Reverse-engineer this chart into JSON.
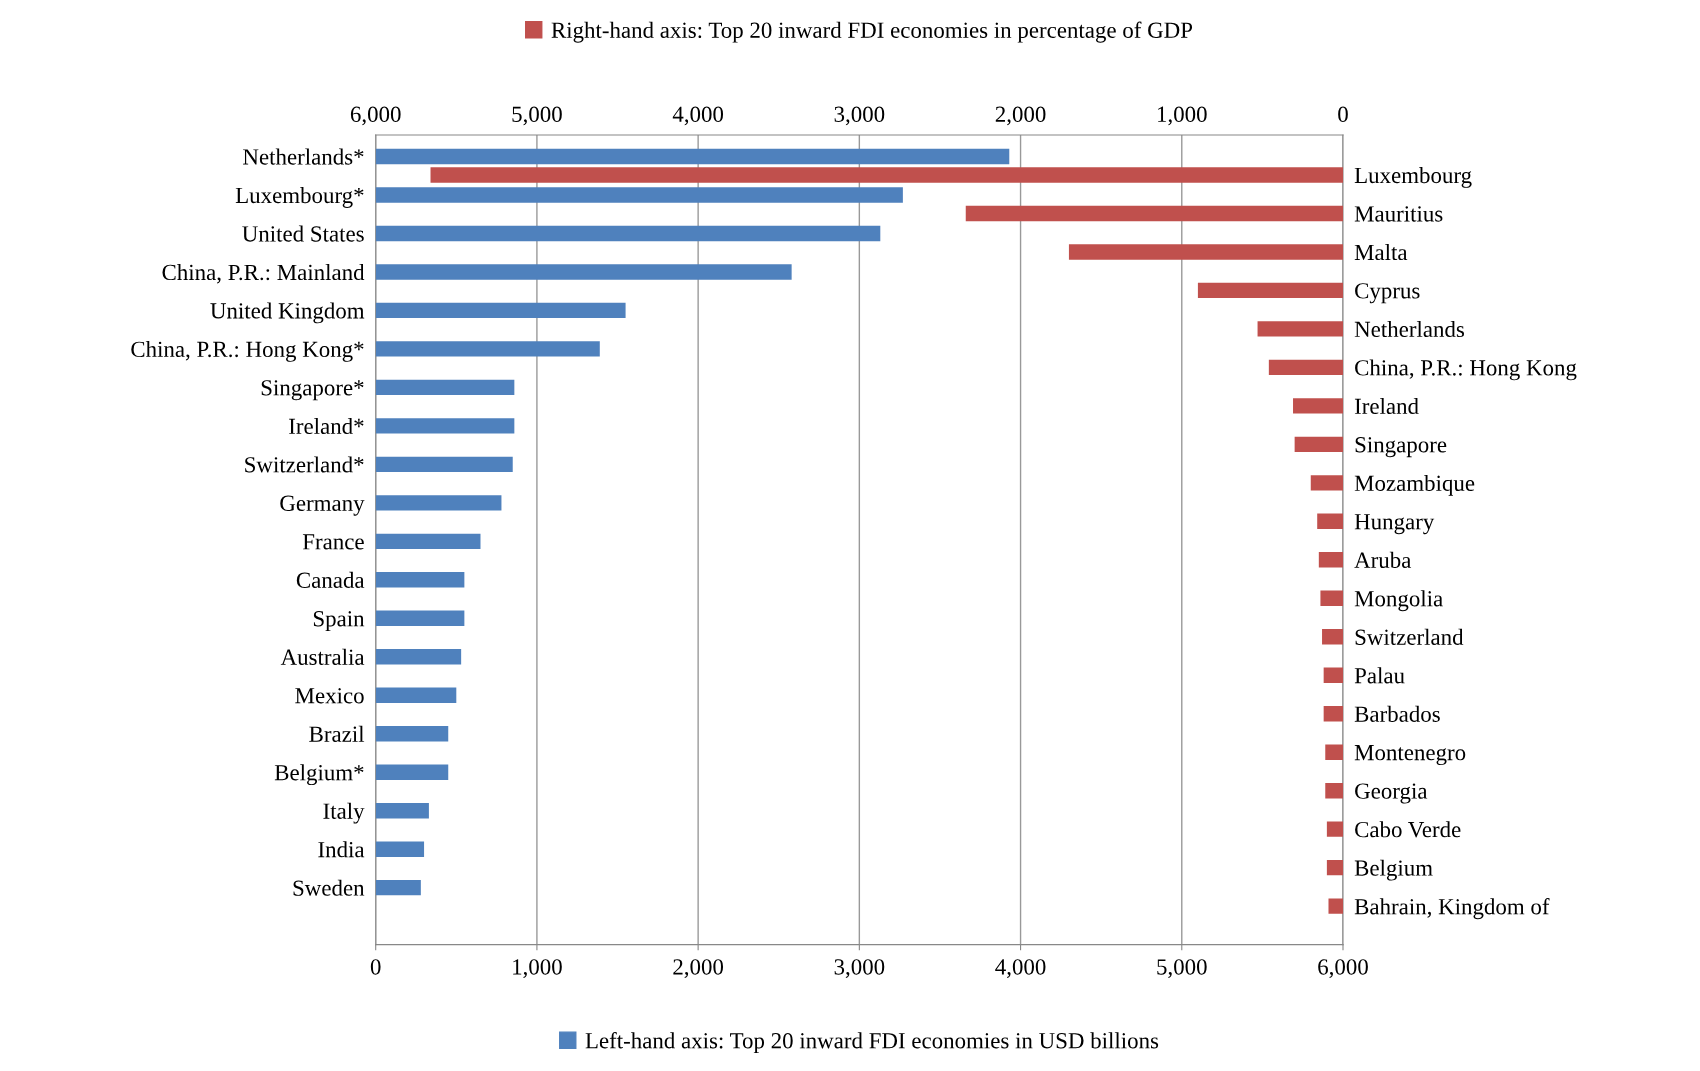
{
  "chart_data": [
    {
      "type": "bar",
      "orientation": "horizontal",
      "categories": [
        "Netherlands*",
        "Luxembourg*",
        "United States",
        "China, P.R.: Mainland",
        "United Kingdom",
        "China, P.R.: Hong Kong*",
        "Singapore*",
        "Ireland*",
        "Switzerland*",
        "Germany",
        "France",
        "Canada",
        "Spain",
        "Australia",
        "Mexico",
        "Brazil",
        "Belgium*",
        "Italy",
        "India",
        "Sweden"
      ],
      "series": [
        {
          "name": "Left-hand axis: Top 20 inward FDI economies in USD billions",
          "color": "#4f81bd",
          "values": [
            3930,
            3270,
            3130,
            2580,
            1550,
            1390,
            860,
            860,
            850,
            780,
            650,
            550,
            550,
            530,
            500,
            450,
            450,
            330,
            300,
            280
          ]
        }
      ],
      "xlim": [
        0,
        6000
      ],
      "xticks": [
        0,
        {
          "value": 1000,
          "label": "1,000"
        },
        {
          "value": 2000,
          "label": "2,000"
        },
        {
          "value": 3000,
          "label": "3,000"
        },
        {
          "value": 4000,
          "label": "4,000"
        },
        {
          "value": 5000,
          "label": "5,000"
        },
        {
          "value": 6000,
          "label": "6,000"
        }
      ],
      "grid": "x",
      "legend": "bottom"
    },
    {
      "type": "bar",
      "orientation": "horizontal",
      "categories": [
        "Luxembourg",
        "Mauritius",
        "Malta",
        "Cyprus",
        "Netherlands",
        "China, P.R.: Hong Kong",
        "Ireland",
        "Singapore",
        "Mozambique",
        "Hungary",
        "Aruba",
        "Mongolia",
        "Switzerland",
        "Palau",
        "Barbados",
        "Montenegro",
        "Georgia",
        "Cabo Verde",
        "Belgium",
        "Bahrain, Kingdom of"
      ],
      "series": [
        {
          "name": "Right-hand axis: Top 20 inward FDI economies in percentage of GDP",
          "color": "#c0504d",
          "values": [
            5660,
            2340,
            1700,
            900,
            530,
            460,
            310,
            300,
            200,
            160,
            150,
            140,
            130,
            120,
            120,
            110,
            110,
            100,
            100,
            90
          ]
        }
      ],
      "xlim": [
        6000,
        0
      ],
      "xticks": [
        {
          "value": 6000,
          "label": "6,000"
        },
        {
          "value": 5000,
          "label": "5,000"
        },
        {
          "value": 4000,
          "label": "4,000"
        },
        {
          "value": 3000,
          "label": "3,000"
        },
        {
          "value": 2000,
          "label": "2,000"
        },
        {
          "value": 1000,
          "label": "1,000"
        },
        0
      ],
      "legend": "top"
    }
  ]
}
